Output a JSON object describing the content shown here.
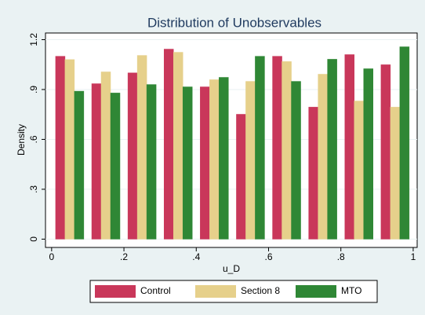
{
  "chart_data": {
    "type": "histogram",
    "title": "Distribution of Unobservables",
    "x_label": "u_D",
    "y_label": "Density",
    "bins": [
      0,
      0.1,
      0.2,
      0.3,
      0.4,
      0.5,
      0.6,
      0.7,
      0.8,
      0.9,
      1
    ],
    "series": [
      {
        "name": "Control",
        "color": "#c9375a",
        "values": [
          1.1,
          0.935,
          1.0,
          1.143,
          0.916,
          0.751,
          1.1,
          0.794,
          1.11,
          1.049
        ]
      },
      {
        "name": "Section 8",
        "color": "#e6d08b",
        "values": [
          1.08,
          1.006,
          1.105,
          1.124,
          0.959,
          0.949,
          1.068,
          0.992,
          0.831,
          0.794
        ]
      },
      {
        "name": "MTO",
        "color": "#2f8735",
        "values": [
          0.89,
          0.879,
          0.93,
          0.916,
          0.973,
          1.1,
          0.949,
          1.082,
          1.025,
          1.157
        ]
      }
    ],
    "xlim": [
      -0.017,
      1.011
    ],
    "ylim": [
      -0.05,
      1.24
    ],
    "xticks": [
      0,
      {
        "value": 0.2,
        "label": ".2"
      },
      {
        "value": 0.4,
        "label": ".4"
      },
      {
        "value": 0.6,
        "label": ".6"
      },
      {
        "value": 0.8,
        "label": ".8"
      },
      1
    ],
    "yticks": [
      0,
      {
        "value": 0.3,
        "label": ".3"
      },
      {
        "value": 0.6,
        "label": ".6"
      },
      {
        "value": 0.9,
        "label": ".9"
      },
      {
        "value": 1.2,
        "label": "1.2"
      }
    ],
    "grid": true,
    "legend_position": "bottom"
  }
}
